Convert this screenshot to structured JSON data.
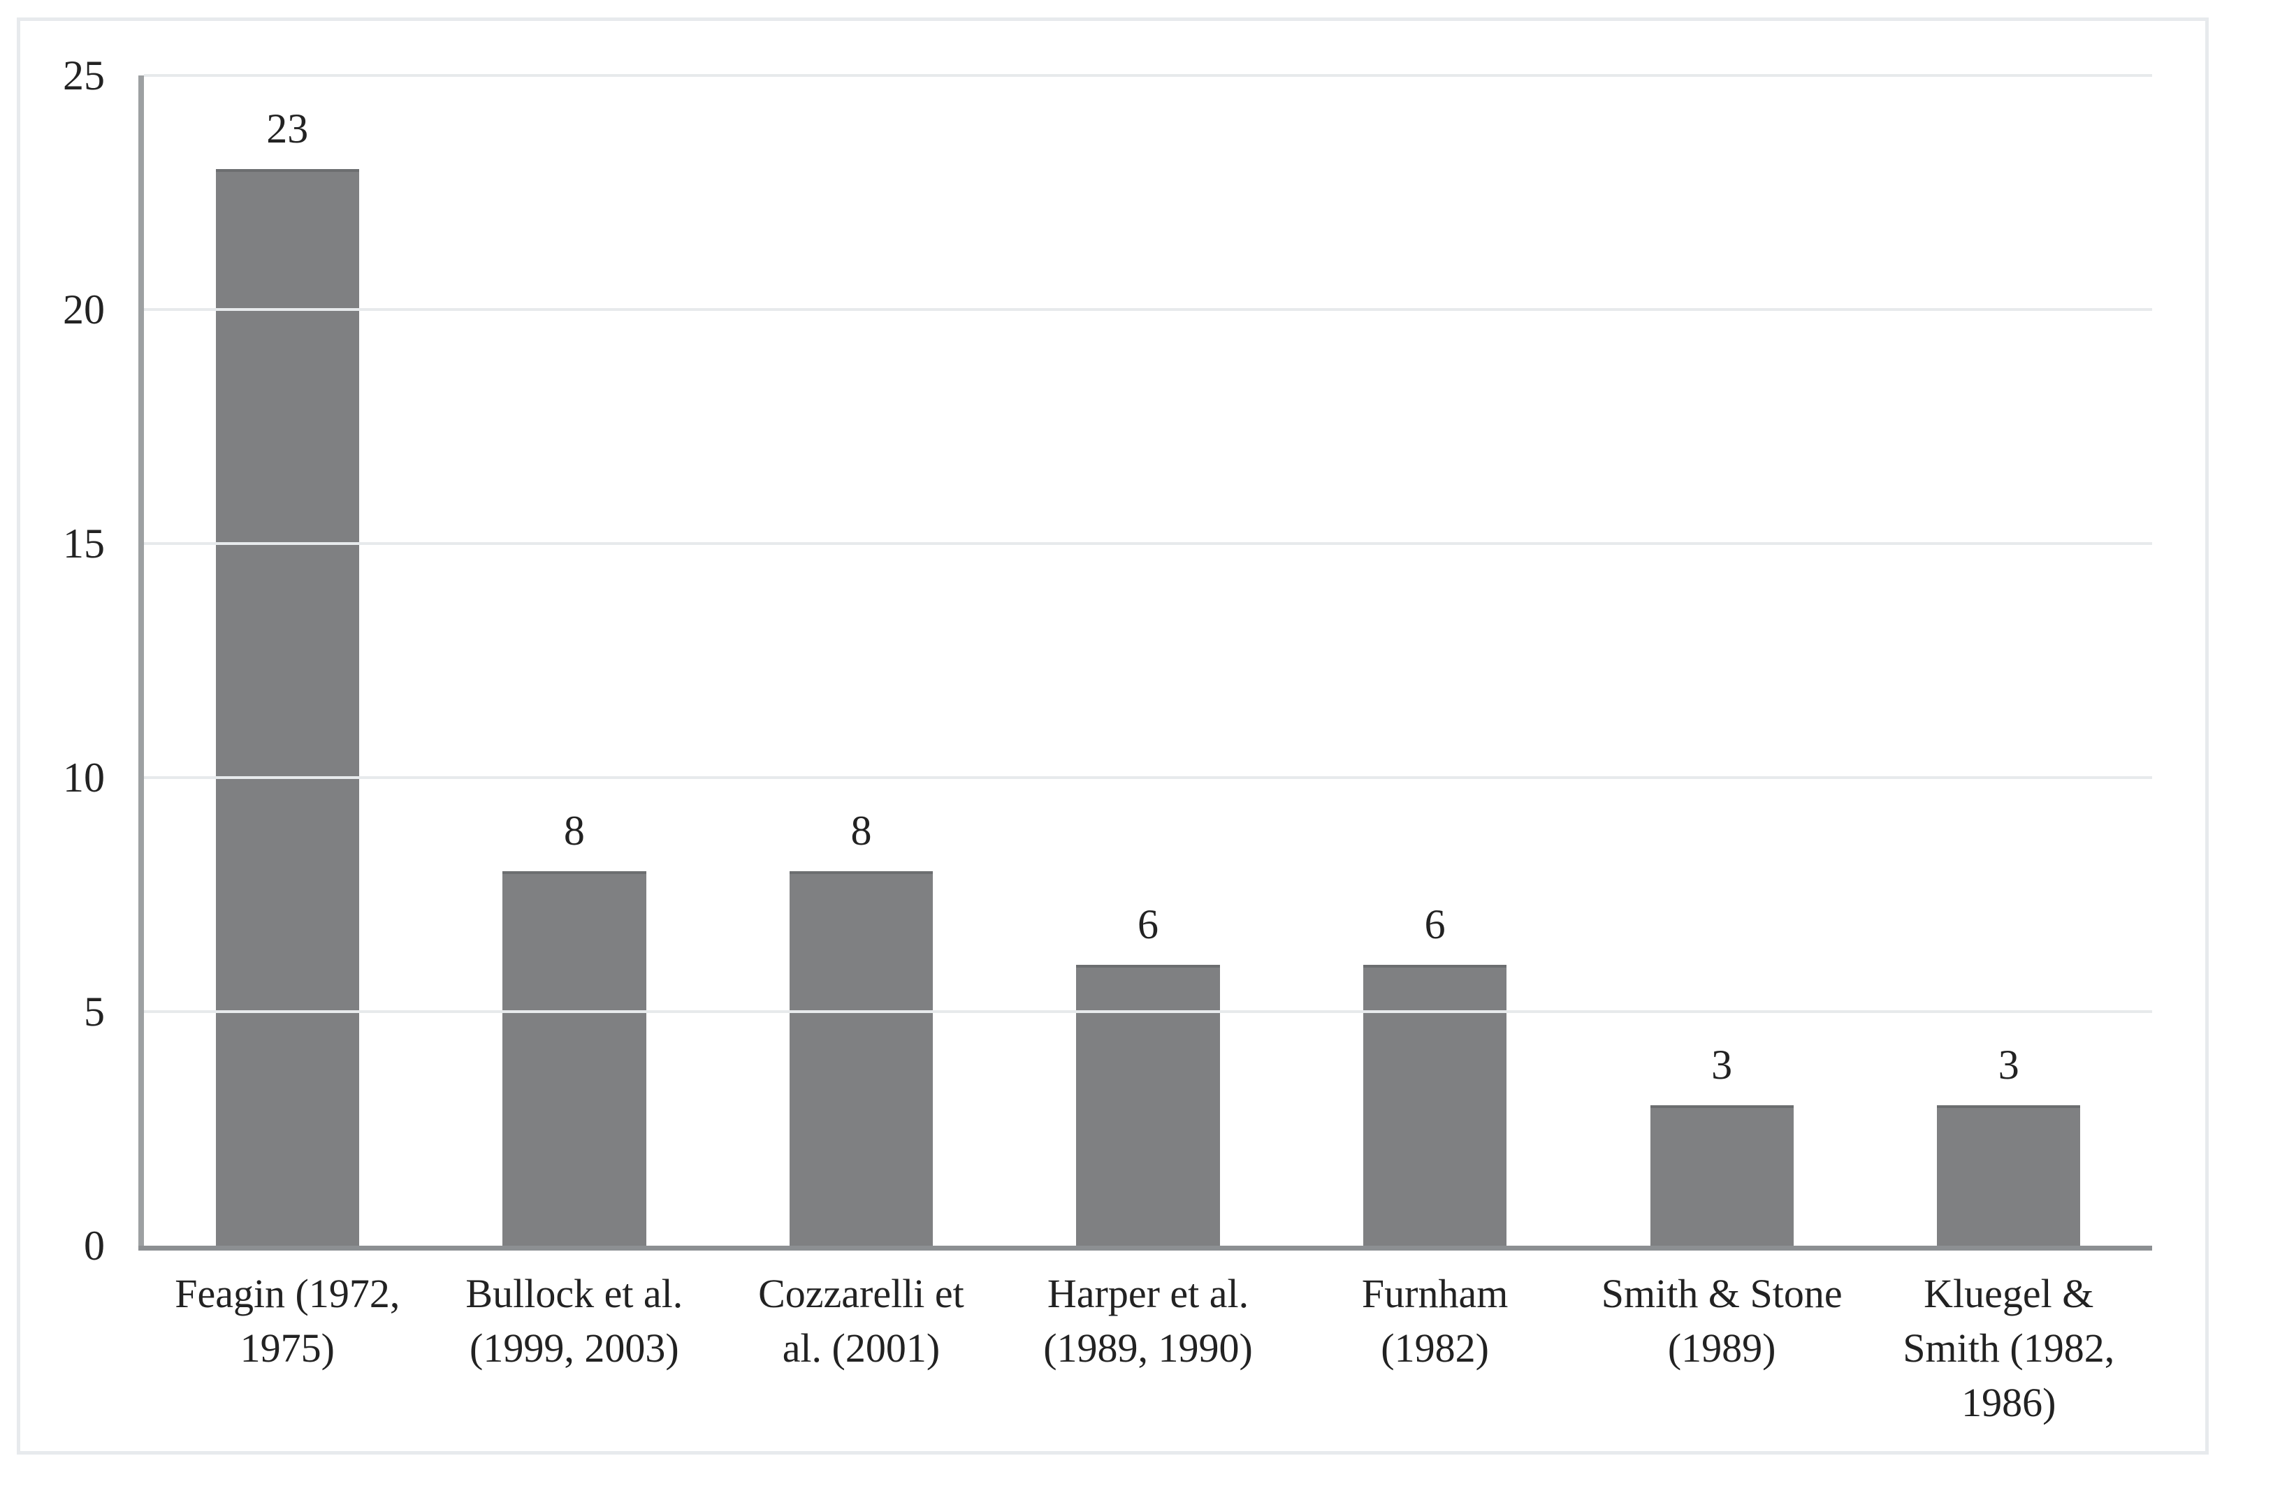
{
  "page": {
    "background": "#ffffff"
  },
  "frame": {
    "border_color": "#e7eaed",
    "background": "#ffffff"
  },
  "chart_data": {
    "type": "bar",
    "title": "",
    "xlabel": "",
    "ylabel": "",
    "categories": [
      "Feagin (1972, 1975)",
      "Bullock et al. (1999, 2003)",
      "Cozzarelli et al. (2001)",
      "Harper et al. (1989, 1990)",
      "Furnham (1982)",
      "Smith & Stone (1989)",
      "Kluegel & Smith (1982, 1986)"
    ],
    "category_lines": [
      [
        "Feagin (1972,",
        "1975)"
      ],
      [
        "Bullock et al.",
        "(1999, 2003)"
      ],
      [
        "Cozzarelli et",
        "al. (2001)"
      ],
      [
        "Harper et al.",
        "(1989, 1990)"
      ],
      [
        "Furnham",
        "(1982)"
      ],
      [
        "Smith & Stone",
        "(1989)"
      ],
      [
        "Kluegel &",
        "Smith (1982,",
        "1986)"
      ]
    ],
    "values": [
      23,
      8,
      8,
      6,
      6,
      3,
      3
    ],
    "ylim": [
      0,
      25
    ],
    "yticks": [
      0,
      5,
      10,
      15,
      20,
      25
    ],
    "grid": true,
    "legend": false,
    "data_labels_shown": true,
    "bar_color": "#7f8082",
    "bar_edge_color": "#6c6e70",
    "gridline_color": "#e7eaec",
    "axis_y_color": "#9da0a2",
    "axis_x_color": "#8c8f92",
    "frame_border_color": "#e7eaed",
    "text_color": "#222222"
  }
}
